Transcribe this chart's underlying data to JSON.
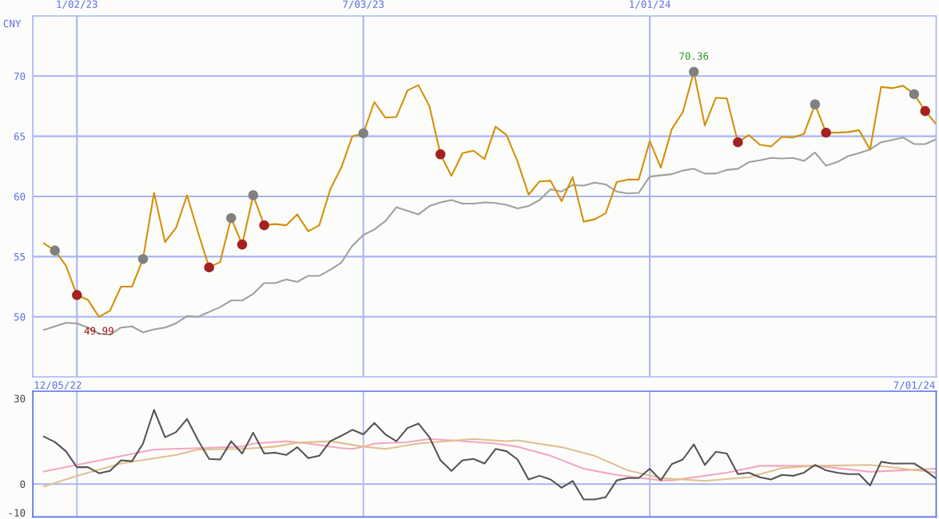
{
  "chart_data": [
    {
      "type": "line",
      "ylabel": "CNY",
      "x": [
        "2022-12-12",
        "2022-12-19",
        "2022-12-26",
        "2023-01-02",
        "2023-01-09",
        "2023-01-16",
        "2023-01-23",
        "2023-01-30",
        "2023-02-06",
        "2023-02-13",
        "2023-02-20",
        "2023-02-27",
        "2023-03-06",
        "2023-03-13",
        "2023-03-20",
        "2023-03-27",
        "2023-04-03",
        "2023-04-10",
        "2023-04-17",
        "2023-04-24",
        "2023-05-01",
        "2023-05-08",
        "2023-05-15",
        "2023-05-22",
        "2023-05-29",
        "2023-06-05",
        "2023-06-12",
        "2023-06-19",
        "2023-06-26",
        "2023-07-03",
        "2023-07-10",
        "2023-07-17",
        "2023-07-24",
        "2023-07-31",
        "2023-08-07",
        "2023-08-14",
        "2023-08-21",
        "2023-08-28",
        "2023-09-04",
        "2023-09-11",
        "2023-09-18",
        "2023-09-25",
        "2023-10-02",
        "2023-10-09",
        "2023-10-16",
        "2023-10-23",
        "2023-10-30",
        "2023-11-06",
        "2023-11-13",
        "2023-11-20",
        "2023-11-27",
        "2023-12-04",
        "2023-12-11",
        "2023-12-18",
        "2023-12-25",
        "2024-01-01",
        "2024-01-08",
        "2024-01-15",
        "2024-01-22",
        "2024-01-29",
        "2024-02-05",
        "2024-02-12",
        "2024-02-19",
        "2024-02-26",
        "2024-03-04",
        "2024-03-11",
        "2024-03-18",
        "2024-03-25",
        "2024-04-01",
        "2024-04-08",
        "2024-04-15",
        "2024-04-22",
        "2024-04-29",
        "2024-05-06",
        "2024-05-13",
        "2024-05-20",
        "2024-05-27",
        "2024-06-03",
        "2024-06-10",
        "2024-06-17",
        "2024-06-24",
        "2024-07-01"
      ],
      "xlim": [
        "2022-12-05",
        "2024-07-01"
      ],
      "xticks": [
        {
          "value": "2023-01-02",
          "label": "1/02/23"
        },
        {
          "value": "2023-07-03",
          "label": "7/03/23"
        },
        {
          "value": "2024-01-01",
          "label": "1/01/24"
        }
      ],
      "ylim": [
        45,
        75
      ],
      "yticks": [
        50,
        55,
        60,
        65,
        70
      ],
      "grid": true,
      "series": [
        {
          "color": "#a0a0a0",
          "values": [
            48.9,
            49.2,
            49.5,
            49.45,
            49.1,
            48.6,
            48.5,
            49.1,
            49.2,
            48.7,
            48.95,
            49.1,
            49.45,
            50.05,
            50.0,
            50.4,
            50.8,
            51.35,
            51.35,
            51.9,
            52.8,
            52.8,
            53.1,
            52.9,
            53.4,
            53.4,
            53.9,
            54.5,
            55.9,
            56.8,
            57.25,
            57.95,
            59.1,
            58.8,
            58.5,
            59.2,
            59.5,
            59.7,
            59.4,
            59.4,
            59.5,
            59.45,
            59.3,
            59.0,
            59.2,
            59.7,
            60.6,
            60.4,
            60.95,
            60.9,
            61.15,
            61.0,
            60.4,
            60.25,
            60.3,
            61.65,
            61.75,
            61.85,
            62.15,
            62.3,
            61.9,
            61.9,
            62.2,
            62.3,
            62.85,
            63.0,
            63.2,
            63.15,
            63.2,
            62.95,
            63.65,
            62.55,
            62.85,
            63.35,
            63.6,
            63.9,
            64.5,
            64.7,
            64.9,
            64.35,
            64.35,
            64.75
          ]
        },
        {
          "color": "#d4900a",
          "values": [
            56.1,
            55.5,
            54.25,
            51.8,
            51.4,
            49.99,
            50.5,
            52.5,
            52.5,
            54.8,
            60.3,
            56.2,
            57.4,
            60.1,
            57.0,
            54.1,
            54.55,
            58.2,
            56.0,
            60.1,
            57.6,
            57.7,
            57.6,
            58.5,
            57.1,
            57.6,
            60.6,
            62.4,
            65.0,
            65.25,
            67.85,
            66.55,
            66.6,
            68.8,
            69.25,
            67.5,
            63.5,
            61.7,
            63.6,
            63.8,
            63.1,
            65.8,
            65.1,
            62.9,
            60.15,
            61.25,
            61.3,
            59.6,
            61.6,
            57.9,
            58.1,
            58.6,
            61.2,
            61.4,
            61.4,
            64.6,
            62.4,
            65.6,
            67.0,
            70.36,
            65.9,
            68.2,
            68.15,
            64.5,
            65.1,
            64.3,
            64.15,
            64.95,
            64.9,
            65.2,
            67.65,
            65.3,
            65.3,
            65.35,
            65.5,
            63.9,
            69.1,
            69.0,
            69.2,
            68.5,
            67.1,
            66.0
          ]
        },
        {
          "type": "scatter",
          "marker": "circle",
          "color": "#808080",
          "x": [
            "2022-12-19",
            "2023-02-13",
            "2023-04-10",
            "2023-04-24",
            "2023-07-03",
            "2024-01-29",
            "2024-04-15",
            "2024-06-17"
          ],
          "values": [
            55.5,
            54.8,
            58.2,
            60.1,
            65.25,
            70.36,
            67.65,
            68.5
          ]
        },
        {
          "type": "scatter",
          "marker": "circle",
          "color": "#a52020",
          "x": [
            "2023-01-02",
            "2023-03-27",
            "2023-04-17",
            "2023-05-01",
            "2023-08-21",
            "2024-02-26",
            "2024-04-22",
            "2024-06-24"
          ],
          "values": [
            51.8,
            54.1,
            56.0,
            57.6,
            63.5,
            64.5,
            65.3,
            67.1
          ]
        }
      ],
      "annotations": [
        {
          "text": "70.36",
          "x": "2024-01-29",
          "y": 70.36
        },
        {
          "text": "49.99",
          "x": "2023-01-16",
          "y": 49.99
        }
      ]
    },
    {
      "type": "line",
      "x": [
        "2022-12-12",
        "2022-12-19",
        "2022-12-26",
        "2023-01-02",
        "2023-01-09",
        "2023-01-16",
        "2023-01-23",
        "2023-01-30",
        "2023-02-06",
        "2023-02-13",
        "2023-02-20",
        "2023-02-27",
        "2023-03-06",
        "2023-03-13",
        "2023-03-20",
        "2023-03-27",
        "2023-04-03",
        "2023-04-10",
        "2023-04-17",
        "2023-04-24",
        "2023-05-01",
        "2023-05-08",
        "2023-05-15",
        "2023-05-22",
        "2023-05-29",
        "2023-06-05",
        "2023-06-12",
        "2023-06-19",
        "2023-06-26",
        "2023-07-03",
        "2023-07-10",
        "2023-07-17",
        "2023-07-24",
        "2023-07-31",
        "2023-08-07",
        "2023-08-14",
        "2023-08-21",
        "2023-08-28",
        "2023-09-04",
        "2023-09-11",
        "2023-09-18",
        "2023-09-25",
        "2023-10-02",
        "2023-10-09",
        "2023-10-16",
        "2023-10-23",
        "2023-10-30",
        "2023-11-06",
        "2023-11-13",
        "2023-11-20",
        "2023-11-27",
        "2023-12-04",
        "2023-12-11",
        "2023-12-18",
        "2023-12-25",
        "2024-01-01",
        "2024-01-08",
        "2024-01-15",
        "2024-01-22",
        "2024-01-29",
        "2024-02-05",
        "2024-02-12",
        "2024-02-19",
        "2024-02-26",
        "2024-03-04",
        "2024-03-11",
        "2024-03-18",
        "2024-03-25",
        "2024-04-01",
        "2024-04-08",
        "2024-04-15",
        "2024-04-22",
        "2024-04-29",
        "2024-05-06",
        "2024-05-13",
        "2024-05-20",
        "2024-05-27",
        "2024-06-03",
        "2024-06-10",
        "2024-06-17",
        "2024-06-24",
        "2024-07-01"
      ],
      "xlim": [
        "2022-12-05",
        "2024-07-01"
      ],
      "annotations": [
        "12/05/22",
        "7/01/24"
      ],
      "ylim": [
        -11.5,
        32.5
      ],
      "yticks": [
        -10,
        0,
        30
      ],
      "ref_lines": [
        {
          "axis": "y",
          "value": 0,
          "color": "#a8b4f4"
        },
        {
          "axis": "x",
          "value": "2023-01-02",
          "color": "#a8b4f4"
        },
        {
          "axis": "x",
          "value": "2023-07-03",
          "color": "#a8b4f4"
        },
        {
          "axis": "x",
          "value": "2024-01-01",
          "color": "#a8b4f4"
        }
      ],
      "series": [
        {
          "color": "#f4a6c0",
          "x": [
            "2022-12-12",
            "2023-01-02",
            "2023-01-30",
            "2023-02-20",
            "2023-03-20",
            "2023-04-17",
            "2023-04-24",
            "2023-05-15",
            "2023-05-29",
            "2023-06-19",
            "2023-06-26",
            "2023-07-03",
            "2023-07-10",
            "2023-07-31",
            "2023-08-14",
            "2023-08-28",
            "2023-09-25",
            "2023-10-09",
            "2023-10-30",
            "2023-11-20",
            "2023-12-11",
            "2024-01-08",
            "2024-01-15",
            "2024-02-19",
            "2024-03-11",
            "2024-04-15",
            "2024-05-20",
            "2024-07-01"
          ],
          "values": [
            4.4,
            6.7,
            9.8,
            12.1,
            12.6,
            13.1,
            14.2,
            15.0,
            14.2,
            12.6,
            12.3,
            13.1,
            14.2,
            14.7,
            15.8,
            15.3,
            14.2,
            13.1,
            9.9,
            5.4,
            3.2,
            1.3,
            1.3,
            4.0,
            6.4,
            6.4,
            4.3,
            5.4
          ]
        },
        {
          "color": "#e0c090",
          "x": [
            "2022-12-12",
            "2023-01-02",
            "2023-01-30",
            "2023-03-06",
            "2023-03-20",
            "2023-04-17",
            "2023-05-08",
            "2023-05-22",
            "2023-06-12",
            "2023-07-03",
            "2023-07-17",
            "2023-08-07",
            "2023-09-11",
            "2023-10-02",
            "2023-10-09",
            "2023-11-06",
            "2023-11-27",
            "2023-12-18",
            "2024-01-08",
            "2024-02-05",
            "2024-03-04",
            "2024-03-25",
            "2024-04-15",
            "2024-05-20",
            "2024-06-10",
            "2024-07-01"
          ],
          "values": [
            -0.8,
            2.9,
            7.2,
            10.2,
            12.1,
            12.3,
            13.1,
            14.5,
            15.0,
            13.1,
            12.3,
            14.2,
            15.8,
            15.0,
            15.3,
            12.9,
            9.9,
            4.8,
            2.1,
            1.1,
            2.4,
            5.6,
            6.4,
            6.7,
            5.4,
            4.0
          ]
        },
        {
          "color": "#555555",
          "values": [
            16.6,
            14.7,
            11.5,
            5.9,
            5.9,
            3.8,
            4.6,
            8.3,
            8.0,
            14.2,
            26.0,
            16.4,
            18.2,
            22.8,
            15.3,
            8.8,
            8.6,
            15.0,
            10.7,
            18.0,
            10.7,
            11.0,
            10.2,
            12.9,
            9.1,
            9.9,
            15.0,
            16.9,
            19.0,
            17.4,
            21.4,
            17.4,
            15.0,
            19.6,
            21.2,
            16.4,
            8.3,
            4.6,
            8.3,
            8.8,
            7.2,
            12.3,
            11.5,
            8.6,
            1.6,
            2.9,
            1.6,
            -1.3,
            1.1,
            -5.4,
            -5.4,
            -4.6,
            1.3,
            2.1,
            2.1,
            5.4,
            1.3,
            7.0,
            8.6,
            13.9,
            6.7,
            11.3,
            10.7,
            3.5,
            4.0,
            2.4,
            1.6,
            3.2,
            2.9,
            4.0,
            6.7,
            4.8,
            4.0,
            3.5,
            3.5,
            -0.5,
            7.8,
            7.2,
            7.2,
            7.2,
            4.8,
            1.9
          ]
        }
      ]
    }
  ]
}
